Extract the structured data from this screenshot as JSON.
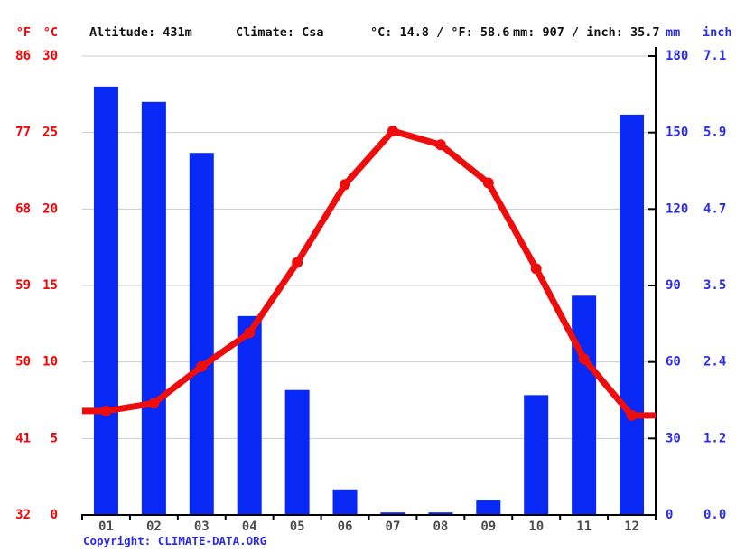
{
  "header": {
    "unit_f": "°F",
    "unit_c": "°C",
    "altitude": "Altitude: 431m",
    "climate": "Climate: Csa",
    "temperature_summary": "°C: 14.8 / °F: 58.6",
    "precipitation_summary": "mm: 907 / inch: 35.7",
    "unit_mm": "mm",
    "unit_inch": "inch"
  },
  "footer": {
    "copyright_label": "Copyright: ",
    "link_text": "CLIMATE-DATA.ORG"
  },
  "colors": {
    "bar": "#0828f5",
    "line": "#ee0d0d",
    "red_label": "#ff0000",
    "blue_label": "#2b2bee",
    "grid": "#cbcbcb",
    "axis": "#000000",
    "month_label": "#4d4d4d"
  },
  "chart_data": [
    {
      "type": "bar",
      "name": "Precipitation",
      "categories": [
        "01",
        "02",
        "03",
        "04",
        "05",
        "06",
        "07",
        "08",
        "09",
        "10",
        "11",
        "12"
      ],
      "values": [
        168,
        162,
        142,
        78,
        49,
        10,
        1,
        1,
        6,
        47,
        86,
        157
      ],
      "unit": "mm",
      "total_mm": 907,
      "total_inch": 35.7,
      "ylabel": "mm",
      "ylim": [
        0,
        180
      ],
      "axis": "right"
    },
    {
      "type": "line",
      "name": "Temperature",
      "categories": [
        "01",
        "02",
        "03",
        "04",
        "05",
        "06",
        "07",
        "08",
        "09",
        "10",
        "11",
        "12"
      ],
      "values": [
        6.8,
        7.3,
        9.7,
        11.9,
        16.5,
        21.6,
        25.1,
        24.2,
        21.7,
        16.1,
        10.2,
        6.5
      ],
      "unit": "°C",
      "mean_c": 14.8,
      "mean_f": 58.6,
      "ylabel": "°C",
      "ylim": [
        0,
        30
      ],
      "axis": "left"
    }
  ],
  "axes": {
    "months": [
      "01",
      "02",
      "03",
      "04",
      "05",
      "06",
      "07",
      "08",
      "09",
      "10",
      "11",
      "12"
    ],
    "left_f": [
      "86",
      "77",
      "68",
      "59",
      "50",
      "41",
      "32"
    ],
    "left_c": [
      "30",
      "25",
      "20",
      "15",
      "10",
      "5",
      "0"
    ],
    "right_mm": [
      "180",
      "150",
      "120",
      "90",
      "60",
      "30",
      "0"
    ],
    "right_inch": [
      "7.1",
      "5.9",
      "4.7",
      "3.5",
      "2.4",
      "1.2",
      "0.0"
    ],
    "grid_values_c": [
      30,
      25,
      20,
      15,
      10,
      5,
      0
    ],
    "grid_values_mm": [
      180,
      150,
      120,
      90,
      60,
      30,
      0
    ]
  }
}
